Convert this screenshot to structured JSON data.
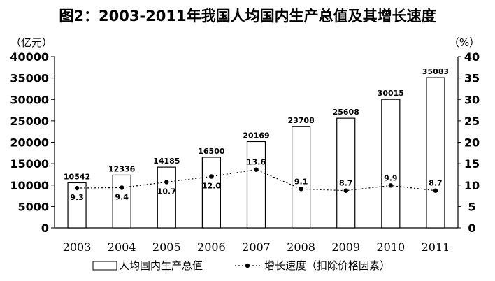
{
  "chart_data": {
    "type": "bar",
    "title": "图2：2003-2011年我国人均国内生产总值及其增长速度",
    "left_unit": "（亿元）",
    "right_unit": "（%）",
    "categories": [
      "2003",
      "2004",
      "2005",
      "2006",
      "2007",
      "2008",
      "2009",
      "2010",
      "2011"
    ],
    "series": [
      {
        "name": "人均国内生产总值",
        "type": "bar",
        "axis": "left",
        "values": [
          10542,
          12336,
          14185,
          16500,
          20169,
          23708,
          25608,
          30015,
          35083
        ]
      },
      {
        "name": "增长速度（扣除价格因素）",
        "type": "line",
        "axis": "right",
        "style": "dotted-with-markers",
        "values": [
          9.3,
          9.4,
          10.7,
          12.0,
          13.6,
          9.1,
          8.7,
          9.9,
          8.7
        ]
      }
    ],
    "ylim_left": [
      0,
      40000
    ],
    "yticks_left": [
      0,
      5000,
      10000,
      15000,
      20000,
      25000,
      30000,
      35000,
      40000
    ],
    "ylim_right": [
      0,
      40
    ],
    "yticks_right": [
      0,
      5,
      10,
      15,
      20,
      25,
      30,
      35,
      40
    ],
    "grid": false,
    "legend_position": "bottom",
    "rate_label_text": [
      "9.3",
      "9.4",
      "10.7",
      "12.0",
      "13.6",
      "9.1",
      "8.7",
      "9.9",
      "8.7"
    ],
    "rate_label_position": [
      "below",
      "below",
      "below",
      "below",
      "above",
      "above",
      "above",
      "above",
      "above"
    ]
  },
  "legend": {
    "bar_label": "人均国内生产总值",
    "line_label": "增长速度（扣除价格因素）"
  },
  "colors": {
    "bar_fill": "#ffffff",
    "stroke": "#000000"
  }
}
